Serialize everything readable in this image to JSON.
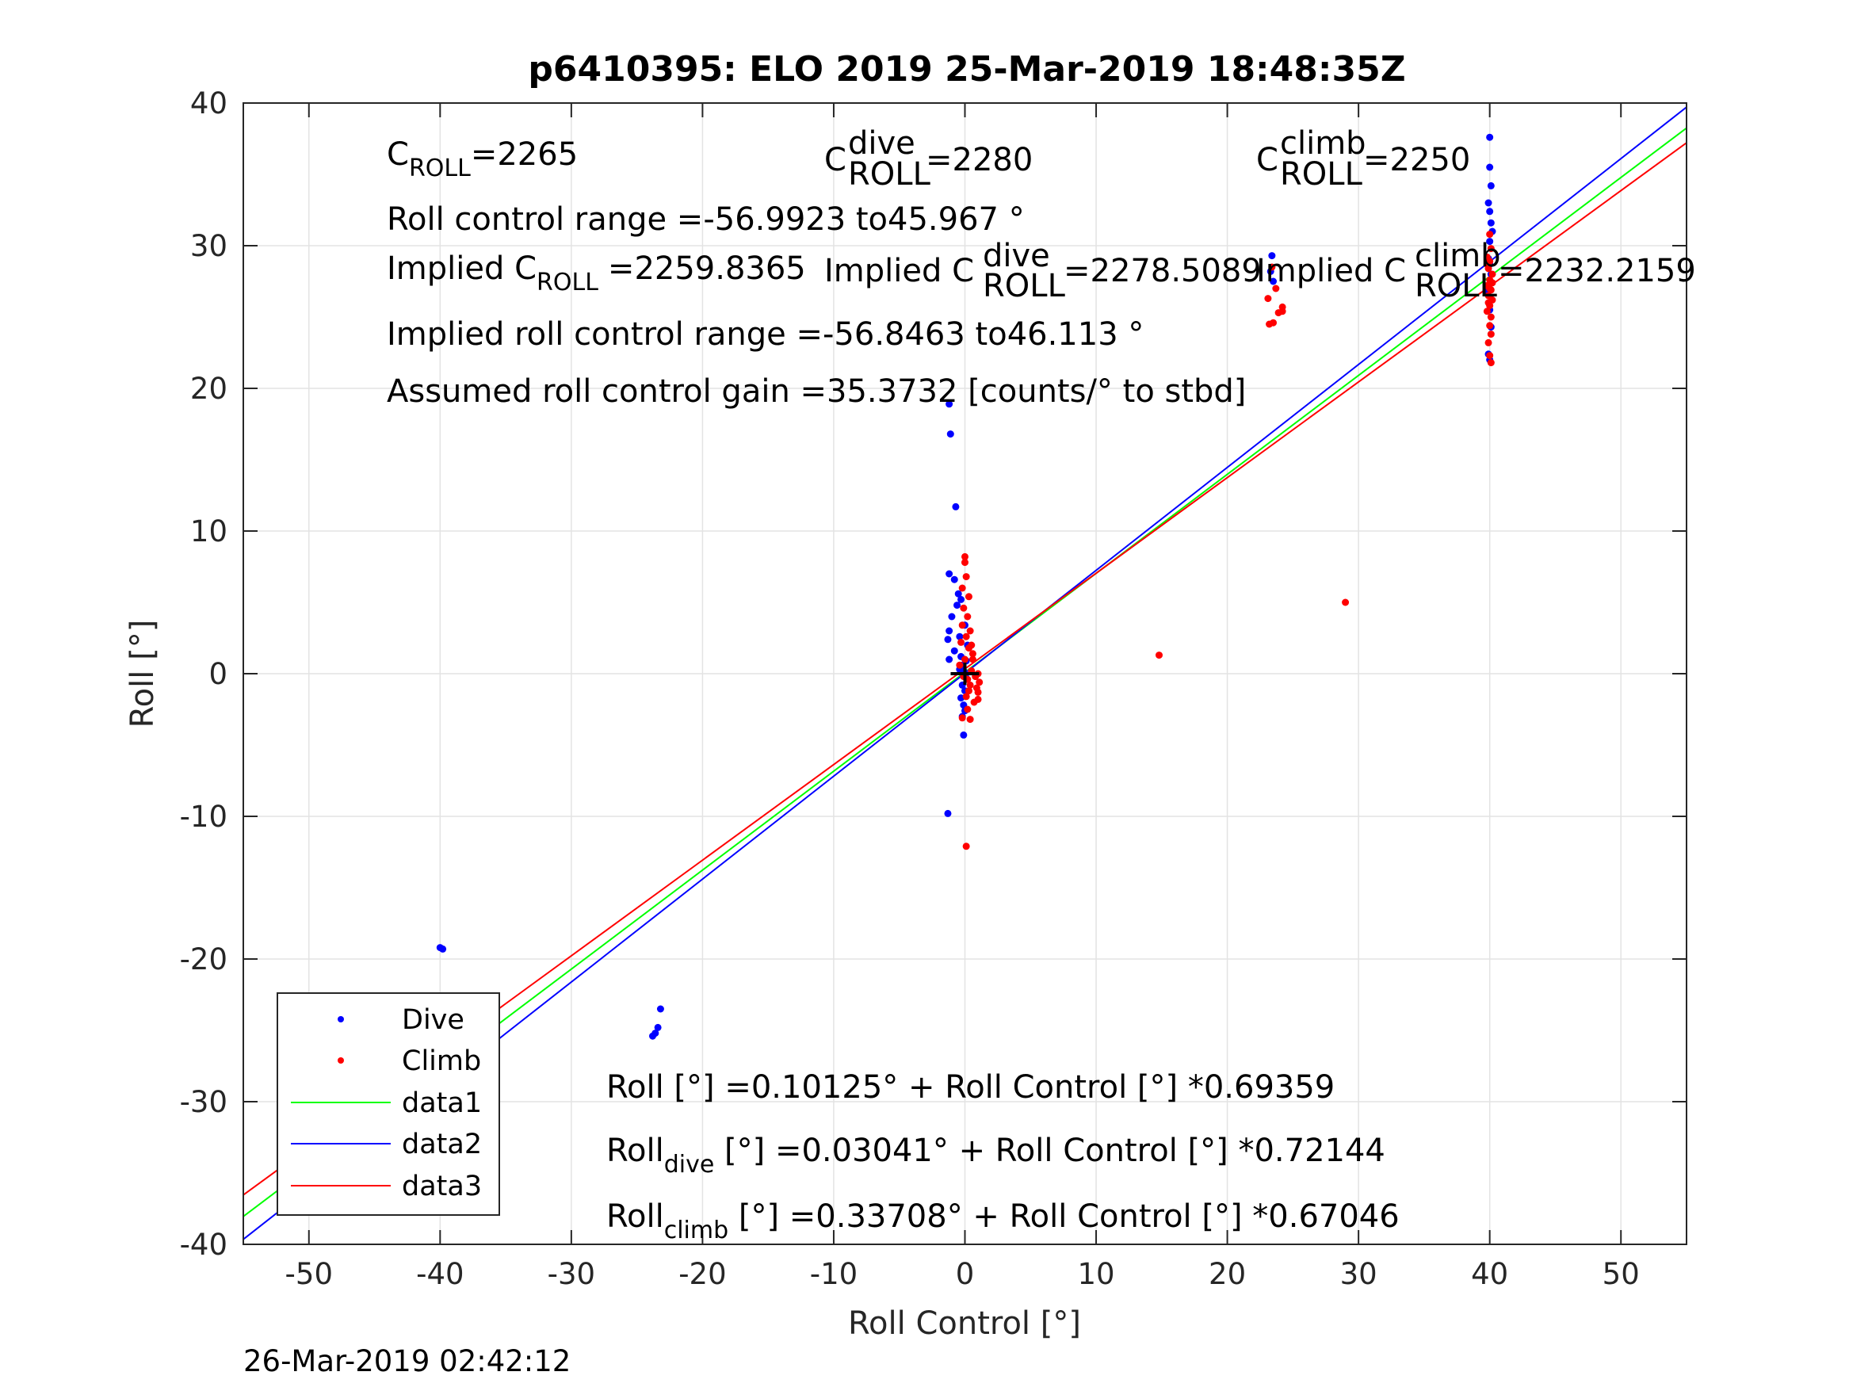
{
  "chart_data": {
    "type": "scatter",
    "title": "p6410395: ELO 2019 25-Mar-2019 18:48:35Z",
    "xlabel": "Roll Control [°]",
    "ylabel": "Roll [°]",
    "xlim": [
      -55,
      55
    ],
    "ylim": [
      -40,
      40
    ],
    "xticks": [
      -50,
      -40,
      -30,
      -20,
      -10,
      0,
      10,
      20,
      30,
      40,
      50
    ],
    "yticks": [
      -40,
      -30,
      -20,
      -10,
      0,
      10,
      20,
      30,
      40
    ],
    "grid": true,
    "legend_position": "bottom-left",
    "timestamp": "26-Mar-2019 02:42:12",
    "annotations": {
      "c_roll": {
        "base": "C",
        "sub": "ROLL",
        "value": "=2265"
      },
      "c_roll_dive": {
        "base": "C",
        "sup": "dive",
        "sub": "ROLL",
        "value": "=2280"
      },
      "c_roll_climb": {
        "base": "C",
        "sup": "climb",
        "sub": "ROLL",
        "value": "=2250"
      },
      "roll_range": "Roll control range =-56.9923 to45.967 °",
      "implied_c_roll": {
        "prefix": "Implied C",
        "sub": "ROLL",
        "value": "=2259.8365"
      },
      "implied_c_roll_dive": {
        "prefix": "Implied C",
        "sup": "dive",
        "sub": "ROLL",
        "value": "=2278.5089"
      },
      "implied_c_roll_climb": {
        "prefix": "Implied C",
        "sup": "climb",
        "sub": "ROLL",
        "value": "=2232.2159"
      },
      "implied_range": "Implied roll control range =-56.8463 to46.113 °",
      "gain": "Assumed roll control gain =35.3732 [counts/° to stbd]",
      "fit_all": "Roll [°] =0.10125° + Roll Control [°] *0.69359",
      "fit_dive": {
        "base": "Roll",
        "sub": "dive",
        "rest": " [°] =0.03041° + Roll Control [°] *0.72144"
      },
      "fit_climb": {
        "base": "Roll",
        "sub": "climb",
        "rest": " [°] =0.33708° + Roll Control [°] *0.67046"
      }
    },
    "series": [
      {
        "name": "Dive",
        "kind": "scatter",
        "color": "#0000ff",
        "points": [
          [
            -40,
            -19.2
          ],
          [
            -39.8,
            -19.3
          ],
          [
            -40,
            -24.2
          ],
          [
            -40.1,
            -25.3
          ],
          [
            -39.8,
            -25.5
          ],
          [
            -39.5,
            -25.3
          ],
          [
            -40,
            -26.0
          ],
          [
            -39.7,
            -26.5
          ],
          [
            -40.2,
            -26.8
          ],
          [
            -39.9,
            -27.3
          ],
          [
            -39.6,
            -26.2
          ],
          [
            -23.8,
            -25.4
          ],
          [
            -23.6,
            -25.2
          ],
          [
            -23.4,
            -24.8
          ],
          [
            -23.2,
            -23.5
          ],
          [
            -1.2,
            18.9
          ],
          [
            -1.1,
            16.8
          ],
          [
            -0.7,
            11.7
          ],
          [
            -1.2,
            7.0
          ],
          [
            -0.8,
            6.6
          ],
          [
            -0.5,
            5.6
          ],
          [
            -0.6,
            4.8
          ],
          [
            -1.0,
            4.0
          ],
          [
            -1.2,
            3.0
          ],
          [
            -1.3,
            2.4
          ],
          [
            -0.4,
            2.6
          ],
          [
            -1.2,
            1.0
          ],
          [
            -0.8,
            1.6
          ],
          [
            -0.3,
            1.2
          ],
          [
            -0.2,
            0.6
          ],
          [
            -0.1,
            0.2
          ],
          [
            0.1,
            -0.3
          ],
          [
            -0.2,
            -0.8
          ],
          [
            0.0,
            -1.2
          ],
          [
            -0.3,
            -1.7
          ],
          [
            -0.1,
            -2.2
          ],
          [
            0.0,
            -2.6
          ],
          [
            -0.2,
            -3.0
          ],
          [
            -0.1,
            -4.3
          ],
          [
            -1.3,
            -9.8
          ],
          [
            0.0,
            3.4
          ],
          [
            -0.3,
            5.2
          ],
          [
            0.2,
            2.0
          ],
          [
            0.1,
            0.9
          ],
          [
            -0.4,
            0.3
          ],
          [
            23.4,
            29.3
          ],
          [
            23.3,
            28.2
          ],
          [
            23.5,
            27.5
          ],
          [
            40,
            37.6
          ],
          [
            40,
            35.5
          ],
          [
            40.1,
            34.2
          ],
          [
            39.9,
            33.0
          ],
          [
            40,
            32.4
          ],
          [
            40.1,
            31.6
          ],
          [
            40,
            30.3
          ],
          [
            39.9,
            29.1
          ],
          [
            40.1,
            28.0
          ],
          [
            39.8,
            26.8
          ],
          [
            40,
            25.5
          ],
          [
            40.1,
            24.3
          ],
          [
            39.9,
            22.4
          ],
          [
            40,
            22.0
          ],
          [
            40,
            28.7
          ],
          [
            40.2,
            31.0
          ]
        ]
      },
      {
        "name": "Climb",
        "kind": "scatter",
        "color": "#ff0000",
        "points": [
          [
            -40.3,
            -26.6
          ],
          [
            -40.1,
            -27.0
          ],
          [
            -39.9,
            -26.7
          ],
          [
            -40.2,
            -27.1
          ],
          [
            0.0,
            8.2
          ],
          [
            0.0,
            7.8
          ],
          [
            0.1,
            6.8
          ],
          [
            -0.2,
            6.0
          ],
          [
            0.3,
            5.4
          ],
          [
            -0.1,
            4.6
          ],
          [
            0.2,
            4.0
          ],
          [
            -0.2,
            3.4
          ],
          [
            0.4,
            3.0
          ],
          [
            0.1,
            2.6
          ],
          [
            -0.3,
            2.2
          ],
          [
            0.3,
            1.8
          ],
          [
            0.6,
            1.4
          ],
          [
            0.0,
            1.0
          ],
          [
            -0.4,
            0.6
          ],
          [
            0.5,
            0.2
          ],
          [
            1.0,
            0.0
          ],
          [
            0.8,
            -0.2
          ],
          [
            0.2,
            -0.4
          ],
          [
            1.1,
            -0.6
          ],
          [
            0.4,
            -0.8
          ],
          [
            0.9,
            -1.0
          ],
          [
            1.0,
            -1.3
          ],
          [
            0.1,
            -1.6
          ],
          [
            0.7,
            -2.0
          ],
          [
            0.2,
            -2.5
          ],
          [
            -0.2,
            -3.1
          ],
          [
            0.4,
            -3.2
          ],
          [
            0.1,
            -12.1
          ],
          [
            0.6,
            1.0
          ],
          [
            0.3,
            -1.2
          ],
          [
            1.0,
            -1.8
          ],
          [
            0.5,
            2.0
          ],
          [
            -0.1,
            -0.2
          ],
          [
            14.8,
            1.3
          ],
          [
            29.0,
            5.0
          ],
          [
            23.2,
            24.5
          ],
          [
            23.5,
            24.6
          ],
          [
            23.9,
            25.3
          ],
          [
            24.2,
            25.7
          ],
          [
            24.2,
            25.4
          ],
          [
            23.7,
            27.0
          ],
          [
            23.4,
            28.5
          ],
          [
            23.1,
            26.3
          ],
          [
            40,
            30.8
          ],
          [
            40.1,
            29.8
          ],
          [
            39.8,
            29.2
          ],
          [
            40,
            28.9
          ],
          [
            39.9,
            28.4
          ],
          [
            40.2,
            28.0
          ],
          [
            40,
            27.6
          ],
          [
            39.8,
            27.2
          ],
          [
            40.1,
            26.9
          ],
          [
            39.9,
            26.5
          ],
          [
            40.2,
            26.2
          ],
          [
            40,
            25.8
          ],
          [
            39.8,
            25.4
          ],
          [
            40.1,
            25.0
          ],
          [
            40,
            24.4
          ],
          [
            40.1,
            23.8
          ],
          [
            39.9,
            23.2
          ],
          [
            40,
            22.3
          ],
          [
            40.1,
            21.8
          ],
          [
            40,
            27.0
          ],
          [
            39.9,
            26.0
          ],
          [
            40.2,
            27.4
          ],
          [
            39.8,
            28.7
          ]
        ]
      },
      {
        "name": "data1",
        "kind": "line",
        "color": "#00ff00",
        "x": [
          -55,
          55
        ],
        "y": [
          -38.047,
          38.248
        ]
      },
      {
        "name": "data2",
        "kind": "line",
        "color": "#0000ff",
        "x": [
          -55,
          55
        ],
        "y": [
          -39.649,
          39.71
        ]
      },
      {
        "name": "data3",
        "kind": "line",
        "color": "#ff0000",
        "x": [
          -55,
          55
        ],
        "y": [
          -36.538,
          37.212
        ]
      }
    ]
  }
}
